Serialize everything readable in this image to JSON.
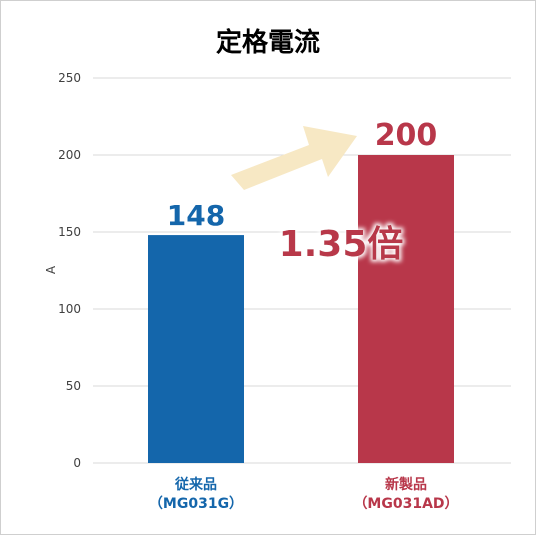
{
  "chart_data": {
    "type": "bar",
    "title": "定格電流",
    "ylabel": "A",
    "xlabel": "",
    "ylim": [
      0,
      250
    ],
    "yticks": [
      0,
      50,
      100,
      150,
      200,
      250
    ],
    "grid": true,
    "categories": [
      {
        "name": "従来品",
        "code": "（MG031G）"
      },
      {
        "name": "新製品",
        "code": "（MG031AD）"
      }
    ],
    "values": [
      148,
      200
    ],
    "data_labels": [
      "148",
      "200"
    ],
    "annotation": "1.35倍",
    "colors": {
      "bar_conventional": "#1466ab",
      "bar_new": "#b8374a",
      "label_conventional": "#1466ab",
      "label_new": "#b8374a",
      "annotation": "#b8374a",
      "arrow": "#f7e8c4",
      "grid": "#d9d9d9",
      "tick_text": "#404040"
    }
  }
}
